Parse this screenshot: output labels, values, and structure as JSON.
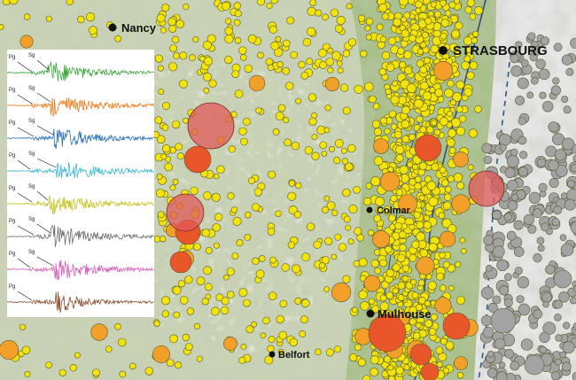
{
  "map": {
    "cities": [
      {
        "name": "Nancy",
        "style": "mid"
      },
      {
        "name": "STRASBOURG",
        "style": "big"
      },
      {
        "name": "Colmar",
        "style": "small"
      },
      {
        "name": "Mulhouse",
        "style": "mid"
      },
      {
        "name": "Belfort",
        "style": "small"
      }
    ],
    "colors": {
      "terrain_base": "#c9d3b4",
      "terrain_relief": "#e8e8e4",
      "rhine_valley": "#a9c08a",
      "foreign_terrain": "#e6e6e6",
      "river": "#2d4f7a",
      "border_dashed": "#2d5a8c",
      "event_small": "#f2e30a",
      "event_medium": "#f2a02a",
      "event_large": "#e8562a",
      "event_largest": "#e05a5a",
      "event_foreign": "#a3a3a3",
      "event_stroke": "#5a5a30"
    }
  },
  "seismograms": {
    "phase_p": "Pg",
    "phase_s": "Sg",
    "traces": [
      {
        "color": "#3aa63a",
        "show_s": true
      },
      {
        "color": "#f07a1a",
        "show_s": true
      },
      {
        "color": "#2a6fb8",
        "show_s": true
      },
      {
        "color": "#3cb8d0",
        "show_s": true
      },
      {
        "color": "#c3c21c",
        "show_s": true
      },
      {
        "color": "#707070",
        "show_s": true
      },
      {
        "color": "#d65cb8",
        "show_s": true
      },
      {
        "color": "#8a4a2a",
        "show_s": false
      }
    ]
  }
}
